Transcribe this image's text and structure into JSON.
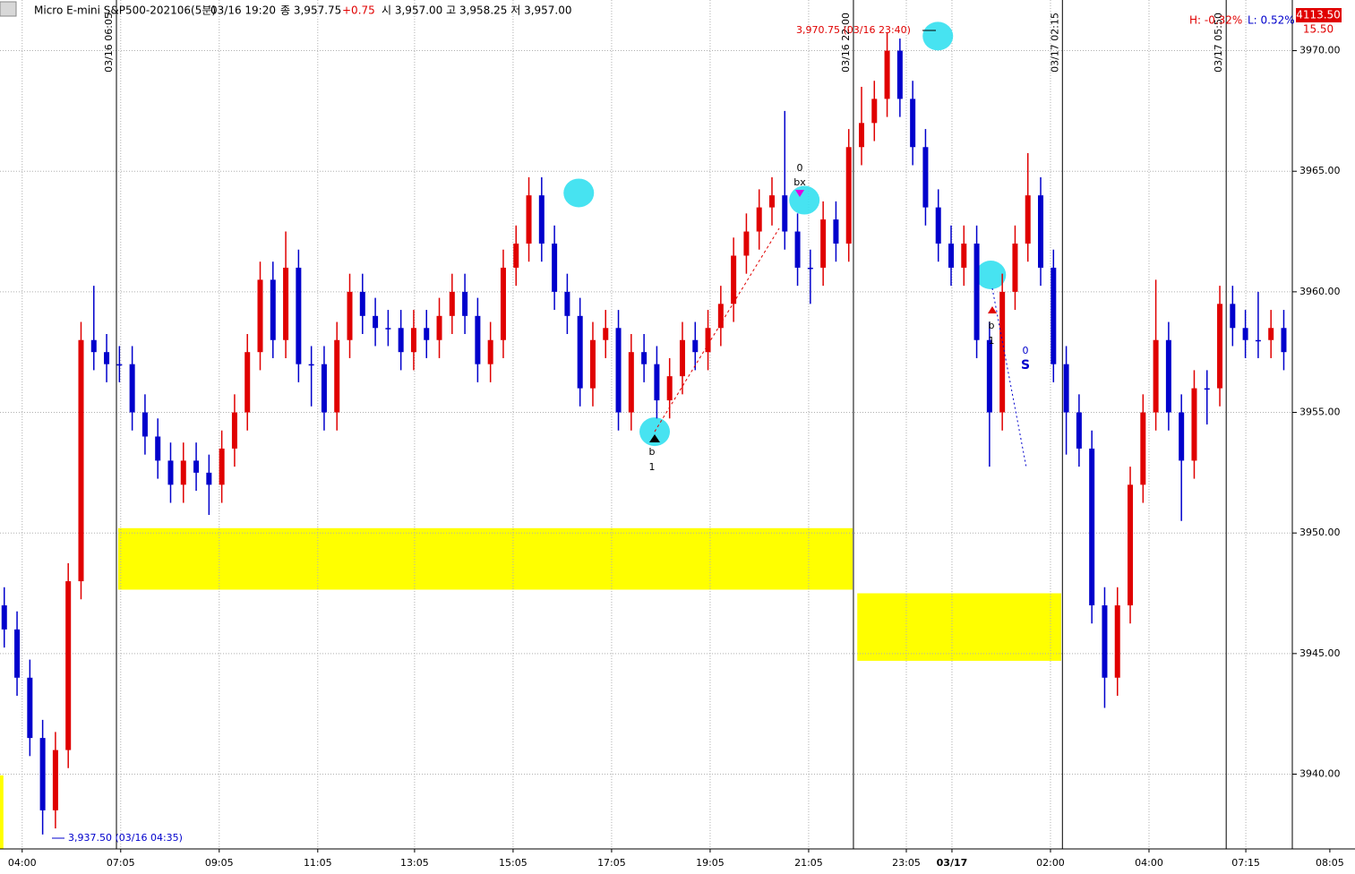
{
  "chart_data": {
    "type": "candlestick",
    "title": "Micro E-mini S&P500-202106(5분)",
    "header_time": "03/16 19:20",
    "header_close": "종 3,957.75",
    "header_change": "+0.75",
    "header_ohl": "시 3,957.00 고 3,958.25 저 3,957.00",
    "high_pct": "H: -0.32%",
    "low_pct": "L: 0.52%",
    "price_box": "4113.50",
    "price_box_sub": "15.50",
    "up_color": "#e00000",
    "down_color": "#0000cc",
    "grid": true,
    "xlim": [
      0,
      303
    ],
    "ylim": [
      3936.9,
      3972.1
    ],
    "yticks": [
      {
        "value": 3940,
        "label": "3940.00"
      },
      {
        "value": 3945,
        "label": "3945.00"
      },
      {
        "value": 3950,
        "label": "3950.00"
      },
      {
        "value": 3955,
        "label": "3955.00"
      },
      {
        "value": 3960,
        "label": "3960.00"
      },
      {
        "value": 3965,
        "label": "3965.00"
      },
      {
        "value": 3970,
        "label": "3970.00"
      }
    ],
    "xticks": [
      {
        "value": 5.2,
        "label": "04:00"
      },
      {
        "value": 28.3,
        "label": "07:05"
      },
      {
        "value": 51.4,
        "label": "09:05"
      },
      {
        "value": 74.5,
        "label": "11:05"
      },
      {
        "value": 97.2,
        "label": "13:05"
      },
      {
        "value": 120.3,
        "label": "15:05"
      },
      {
        "value": 143.4,
        "label": "17:05"
      },
      {
        "value": 166.5,
        "label": "19:05"
      },
      {
        "value": 189.6,
        "label": "21:05"
      },
      {
        "value": 212.5,
        "label": "23:05"
      },
      {
        "value": 223.2,
        "label": "03/17"
      },
      {
        "value": 246.3,
        "label": "02:00"
      },
      {
        "value": 269.4,
        "label": "04:00"
      },
      {
        "value": 292.1,
        "label": "07:15"
      },
      {
        "value": 311.8,
        "label": "08:05"
      }
    ],
    "session_lines": [
      {
        "x": 27.3,
        "label": "03/16 06:05"
      },
      {
        "x": 200.1,
        "label": "03/16 22:00"
      },
      {
        "x": 249.1,
        "label": "03/17 02:15"
      },
      {
        "x": 287.5,
        "label": "03/17 05:50"
      }
    ],
    "zones": [
      {
        "x0": 27.7,
        "x1": 199.9,
        "y0": 3947.65,
        "y1": 3950.2,
        "color": "#ffff00"
      },
      {
        "x0": 201.0,
        "x1": 248.8,
        "y0": 3944.7,
        "y1": 3947.5,
        "color": "#ffff00"
      },
      {
        "x0": 0,
        "x1": 0.8,
        "y0": 3936.9,
        "y1": 3939.95,
        "color": "#ffff00"
      }
    ],
    "markers": [
      {
        "x": 135.7,
        "y": 3964.1
      },
      {
        "x": 153.5,
        "y": 3954.2
      },
      {
        "x": 188.6,
        "y": 3963.8
      },
      {
        "x": 219.9,
        "y": 3970.6
      },
      {
        "x": 232.3,
        "y": 3960.7
      }
    ],
    "marker_color": "#33e0f0",
    "annotations": {
      "high_note": "3,970.75 (03/16 23:40)",
      "low_note": "3,937.50 (03/16 04:35)",
      "sig1_a": "b",
      "sig1_b": "1",
      "sig2_a": "0",
      "sig2_b": "bx",
      "sig3_a": "b",
      "sig3_b": "1",
      "sig4_a": "0",
      "sig4_b": "S"
    },
    "x": [
      1,
      4,
      7,
      10,
      13,
      16,
      19,
      22,
      25,
      28,
      31,
      34,
      37,
      40,
      43,
      46,
      49,
      52,
      55,
      58,
      61,
      64,
      67,
      70,
      73,
      76,
      79,
      82,
      85,
      88,
      91,
      94,
      97,
      100,
      103,
      106,
      109,
      112,
      115,
      118,
      121,
      124,
      127,
      130,
      133,
      136,
      139,
      142,
      145,
      148,
      151,
      154,
      157,
      160,
      163,
      166,
      169,
      172,
      175,
      178,
      181,
      184,
      187,
      190,
      193,
      196,
      199,
      202,
      205,
      208,
      211,
      214,
      217,
      220,
      223,
      226,
      229,
      232,
      235,
      238,
      241,
      244,
      247,
      250,
      253,
      256,
      259,
      262,
      265,
      268,
      271,
      274,
      277,
      280,
      283,
      286,
      289,
      292,
      295,
      298,
      301
    ],
    "open": [
      3947,
      3946,
      3944,
      3941.5,
      3938.5,
      3941,
      3948,
      3958,
      3957.5,
      3957,
      3957,
      3955,
      3954,
      3953,
      3952,
      3953,
      3952.5,
      3952,
      3953.5,
      3955,
      3957.5,
      3960.5,
      3958,
      3961,
      3957,
      3957,
      3955,
      3958,
      3960,
      3959,
      3958.5,
      3958.5,
      3957.5,
      3958.5,
      3958,
      3959,
      3960,
      3959,
      3957,
      3958,
      3961,
      3962,
      3964,
      3962,
      3960,
      3959,
      3956,
      3958,
      3958.5,
      3955,
      3957.5,
      3957,
      3955.5,
      3956.5,
      3958,
      3957.5,
      3958.5,
      3959.5,
      3961.5,
      3962.5,
      3963.5,
      3964,
      3962.5,
      3961,
      3961,
      3963,
      3962,
      3966,
      3967,
      3968,
      3970,
      3968,
      3966,
      3963.5,
      3962,
      3961,
      3962,
      3958,
      3955,
      3960,
      3962,
      3964,
      3961,
      3957,
      3955,
      3953.5,
      3947,
      3944,
      3947,
      3952,
      3955,
      3958,
      3955,
      3953,
      3956,
      3956,
      3959.5,
      3958.5,
      3958,
      3958,
      3958.5
    ],
    "high": [
      3947.75,
      3946.75,
      3944.75,
      3942.25,
      3941.75,
      3948.75,
      3958.75,
      3960.25,
      3958.25,
      3957.75,
      3957.75,
      3955.75,
      3954.75,
      3953.75,
      3953.75,
      3953.75,
      3953.25,
      3954.25,
      3955.75,
      3958.25,
      3961.25,
      3961.25,
      3962.5,
      3961.75,
      3957.75,
      3957.75,
      3958.75,
      3960.75,
      3960.75,
      3959.75,
      3959.25,
      3959.25,
      3959.25,
      3959.25,
      3959.75,
      3960.75,
      3960.75,
      3959.75,
      3958.75,
      3961.75,
      3962.75,
      3964.75,
      3964.75,
      3962.75,
      3960.75,
      3959.75,
      3958.75,
      3959.25,
      3959.25,
      3958.25,
      3958.25,
      3957.75,
      3957.25,
      3958.75,
      3958.75,
      3959.25,
      3960.25,
      3962.25,
      3963.25,
      3964.25,
      3964.75,
      3967.5,
      3963.25,
      3961.75,
      3963.75,
      3963.75,
      3966.75,
      3968.5,
      3968.75,
      3970.75,
      3970.5,
      3968.75,
      3966.75,
      3964.25,
      3962.75,
      3962.75,
      3962.75,
      3958.75,
      3960.75,
      3962.75,
      3965.75,
      3964.75,
      3961.75,
      3957.75,
      3955.75,
      3954.25,
      3947.75,
      3947.75,
      3952.75,
      3955.75,
      3960.5,
      3958.75,
      3955.75,
      3956.75,
      3956.75,
      3960.25,
      3960.25,
      3959.25,
      3960,
      3959.25,
      3959.25
    ],
    "low": [
      3945.25,
      3943.25,
      3940.75,
      3937.5,
      3937.75,
      3940.25,
      3947.25,
      3956.75,
      3956.25,
      3956.25,
      3954.25,
      3953.25,
      3952.25,
      3951.25,
      3951.25,
      3951.75,
      3950.75,
      3951.25,
      3952.75,
      3954.25,
      3956.75,
      3957.25,
      3957.25,
      3956.25,
      3955.25,
      3954.25,
      3954.25,
      3957.25,
      3958.25,
      3957.75,
      3957.75,
      3956.75,
      3956.75,
      3957.25,
      3957.25,
      3958.25,
      3958.25,
      3956.25,
      3956.25,
      3957.25,
      3960.25,
      3961.25,
      3961.25,
      3959.25,
      3958.25,
      3955.25,
      3955.25,
      3957.25,
      3954.25,
      3954.25,
      3956.25,
      3954.75,
      3954.75,
      3955.75,
      3956.75,
      3956.75,
      3957.75,
      3958.75,
      3960.75,
      3961.75,
      3962.75,
      3961.75,
      3960.25,
      3959.5,
      3960.25,
      3961.25,
      3961.25,
      3965.25,
      3966.25,
      3967.25,
      3967.25,
      3965.25,
      3962.75,
      3961.25,
      3960.25,
      3960.25,
      3957.25,
      3952.75,
      3954.25,
      3959.25,
      3961.25,
      3960.25,
      3956.25,
      3953.25,
      3952.75,
      3946.25,
      3942.75,
      3943.25,
      3946.25,
      3951.25,
      3954.25,
      3954.25,
      3950.5,
      3952.25,
      3954.5,
      3955.25,
      3957.75,
      3957.25,
      3957.25,
      3957.25,
      3956.75
    ],
    "close": [
      3946,
      3944,
      3941.5,
      3938.5,
      3941,
      3948,
      3958,
      3957.5,
      3957,
      3957,
      3955,
      3954,
      3953,
      3952,
      3953,
      3952.5,
      3952,
      3953.5,
      3955,
      3957.5,
      3960.5,
      3958,
      3961,
      3957,
      3957,
      3955,
      3958,
      3960,
      3959,
      3958.5,
      3958.5,
      3957.5,
      3958.5,
      3958,
      3959,
      3960,
      3959,
      3957,
      3958,
      3961,
      3962,
      3964,
      3962,
      3960,
      3959,
      3956,
      3958,
      3958.5,
      3955,
      3957.5,
      3957,
      3955.5,
      3956.5,
      3958,
      3957.5,
      3958.5,
      3959.5,
      3961.5,
      3962.5,
      3963.5,
      3964,
      3962.5,
      3961,
      3961,
      3963,
      3962,
      3966,
      3967,
      3968,
      3970,
      3968,
      3966,
      3963.5,
      3962,
      3961,
      3962,
      3958,
      3955,
      3960,
      3962,
      3964,
      3961,
      3957,
      3955,
      3953.5,
      3947,
      3944,
      3947,
      3952,
      3955,
      3958,
      3955,
      3953,
      3956,
      3956,
      3959.5,
      3958.5,
      3958,
      3958,
      3958.5,
      3957.5
    ]
  }
}
